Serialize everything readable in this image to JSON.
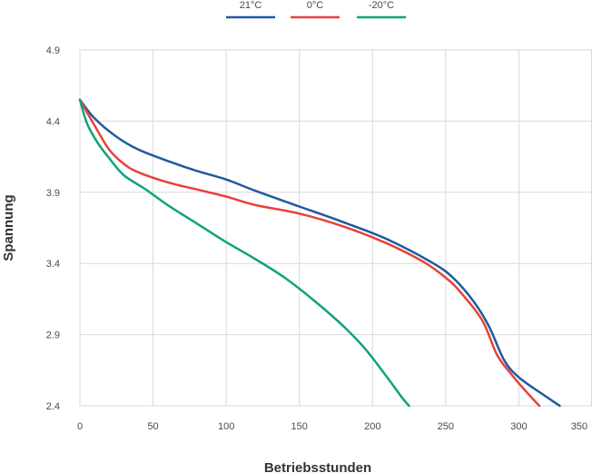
{
  "chart_data": {
    "type": "line",
    "title": "",
    "xlabel": "Betriebsstunden",
    "ylabel": "Spannung",
    "xlim": [
      0,
      350
    ],
    "ylim": [
      2.4,
      4.9
    ],
    "x_ticks": [
      0,
      50,
      100,
      150,
      200,
      250,
      300,
      350
    ],
    "y_ticks": [
      "2.4",
      "2.9",
      "3.4",
      "3.9",
      "4.4",
      "4.9"
    ],
    "grid": true,
    "legend_position": "top-center",
    "series": [
      {
        "name": "21°C",
        "color": "#1f5aa0",
        "points": [
          [
            0,
            4.55
          ],
          [
            10,
            4.42
          ],
          [
            25,
            4.29
          ],
          [
            40,
            4.2
          ],
          [
            60,
            4.12
          ],
          [
            80,
            4.05
          ],
          [
            100,
            3.99
          ],
          [
            120,
            3.91
          ],
          [
            150,
            3.8
          ],
          [
            180,
            3.69
          ],
          [
            210,
            3.57
          ],
          [
            240,
            3.41
          ],
          [
            255,
            3.3
          ],
          [
            270,
            3.12
          ],
          [
            280,
            2.95
          ],
          [
            290,
            2.72
          ],
          [
            300,
            2.6
          ],
          [
            315,
            2.49
          ],
          [
            328,
            2.4
          ]
        ]
      },
      {
        "name": "0°C",
        "color": "#e8413a",
        "points": [
          [
            0,
            4.55
          ],
          [
            10,
            4.37
          ],
          [
            20,
            4.2
          ],
          [
            30,
            4.1
          ],
          [
            40,
            4.04
          ],
          [
            60,
            3.97
          ],
          [
            80,
            3.92
          ],
          [
            100,
            3.87
          ],
          [
            120,
            3.81
          ],
          [
            150,
            3.75
          ],
          [
            180,
            3.66
          ],
          [
            210,
            3.54
          ],
          [
            235,
            3.41
          ],
          [
            250,
            3.3
          ],
          [
            260,
            3.2
          ],
          [
            275,
            3.0
          ],
          [
            285,
            2.76
          ],
          [
            295,
            2.62
          ],
          [
            305,
            2.5
          ],
          [
            314,
            2.4
          ]
        ]
      },
      {
        "name": "-20°C",
        "color": "#10a37f",
        "points": [
          [
            0,
            4.55
          ],
          [
            5,
            4.38
          ],
          [
            12,
            4.25
          ],
          [
            20,
            4.14
          ],
          [
            30,
            4.02
          ],
          [
            45,
            3.92
          ],
          [
            60,
            3.81
          ],
          [
            80,
            3.68
          ],
          [
            100,
            3.55
          ],
          [
            120,
            3.43
          ],
          [
            140,
            3.3
          ],
          [
            160,
            3.14
          ],
          [
            180,
            2.96
          ],
          [
            195,
            2.8
          ],
          [
            210,
            2.6
          ],
          [
            220,
            2.46
          ],
          [
            225,
            2.4
          ]
        ]
      }
    ]
  }
}
